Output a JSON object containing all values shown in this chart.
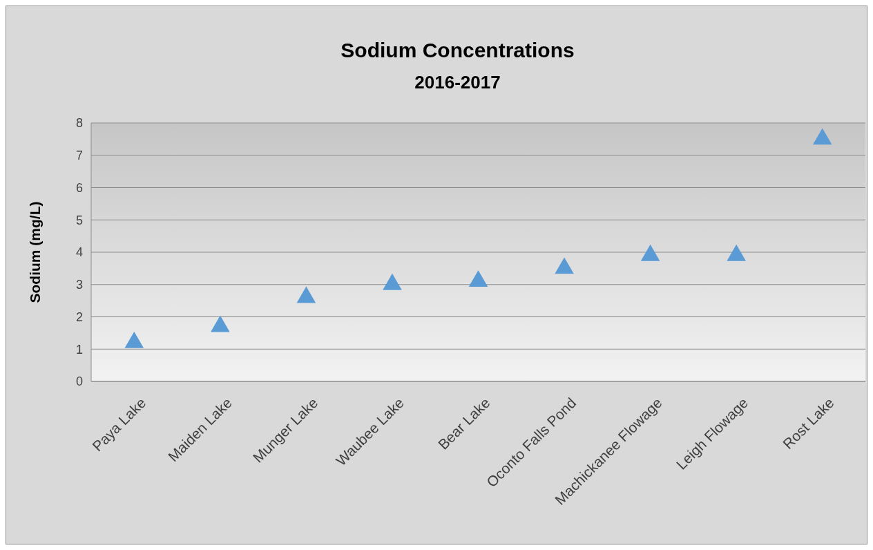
{
  "chart_data": {
    "type": "scatter",
    "title": "Sodium Concentrations",
    "subtitle": "2016-2017",
    "ylabel": "Sodium (mg/L)",
    "categories": [
      "Paya Lake",
      "Maiden Lake",
      "Munger Lake",
      "Waubee Lake",
      "Bear Lake",
      "Oconto Falls Pond",
      "Machickanee Flowage",
      "Leigh Flowage",
      "Rost Lake"
    ],
    "series": [
      {
        "color": "#5b9bd5",
        "values": [
          1.2,
          1.7,
          2.6,
          3.0,
          3.1,
          3.5,
          3.9,
          3.9,
          7.5
        ]
      }
    ],
    "ylim": [
      0,
      8
    ],
    "yticks": [
      0,
      1,
      2,
      3,
      4,
      5,
      6,
      7,
      8
    ],
    "grid": "y",
    "marker": "triangle"
  }
}
